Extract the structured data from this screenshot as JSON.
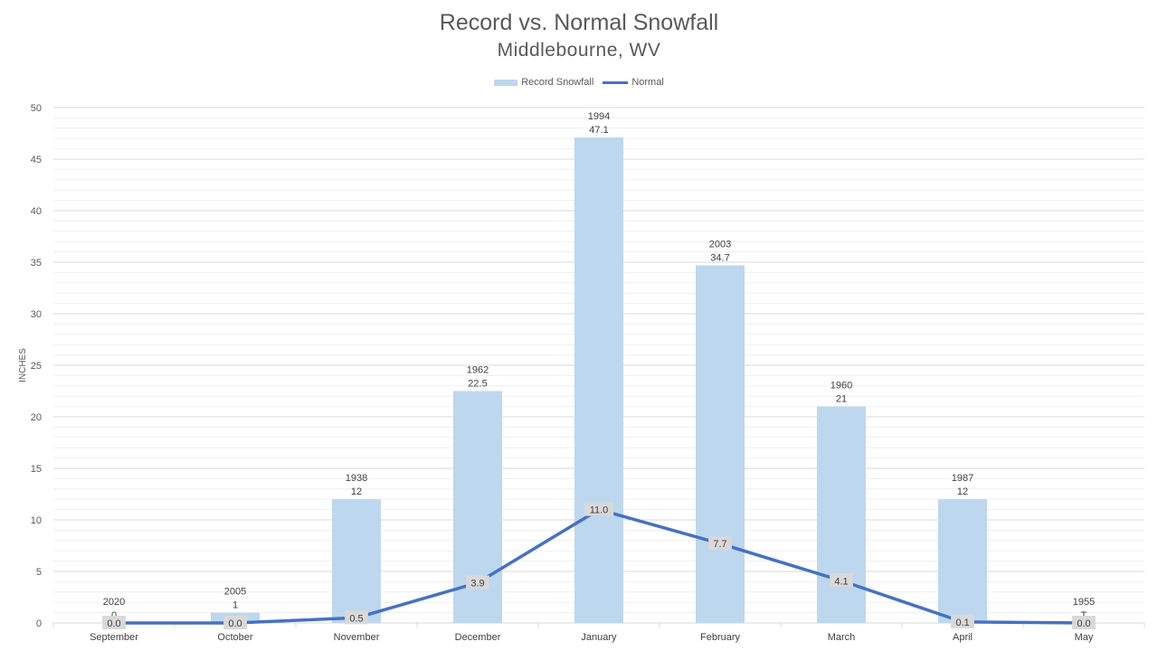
{
  "chart_data": {
    "type": "bar",
    "title": "Record vs. Normal Snowfall",
    "subtitle": "Middlebourne, WV",
    "ylabel": "INCHES",
    "xlabel": "",
    "ylim": [
      0,
      50
    ],
    "y_ticks": [
      "0",
      "5",
      "10",
      "15",
      "20",
      "25",
      "30",
      "35",
      "40",
      "45",
      "50"
    ],
    "categories": [
      "September",
      "October",
      "November",
      "December",
      "January",
      "February",
      "March",
      "April",
      "May"
    ],
    "legend_position": "top",
    "grid": true,
    "series": [
      {
        "name": "Record Snowfall",
        "kind": "bar",
        "color": "#bdd7ee",
        "values": [
          0,
          1,
          12,
          22.5,
          47.1,
          34.7,
          21,
          12,
          0
        ],
        "year_labels": [
          "2020",
          "2005",
          "1938",
          "1962",
          "1994",
          "2003",
          "1960",
          "1987",
          "1955"
        ],
        "value_labels": [
          "0",
          "1",
          "12",
          "22.5",
          "47.1",
          "34.7",
          "21",
          "12",
          "T"
        ]
      },
      {
        "name": "Normal",
        "kind": "line",
        "color": "#4472c4",
        "values": [
          0.0,
          0.0,
          0.5,
          3.9,
          11.0,
          7.7,
          4.1,
          0.1,
          0.0
        ],
        "value_labels": [
          "0.0",
          "0.0",
          "0.5",
          "3.9",
          "11.0",
          "7.7",
          "4.1",
          "0.1",
          "0.0"
        ]
      }
    ]
  }
}
